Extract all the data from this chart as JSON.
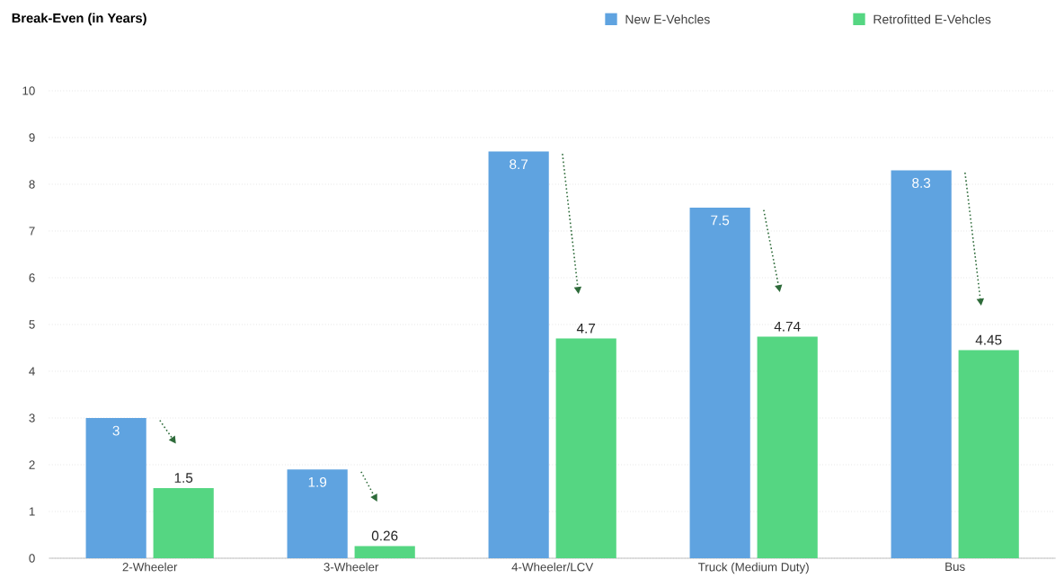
{
  "chart_data": {
    "type": "bar",
    "title": "Break-Even (in Years)",
    "categories": [
      "2-Wheeler",
      "3-Wheeler",
      "4-Wheeler/LCV",
      "Truck (Medium Duty)",
      "Bus"
    ],
    "series": [
      {
        "name": "New E-Vehcles",
        "color": "#5fa3e0",
        "values": [
          3,
          1.9,
          8.7,
          7.5,
          8.3
        ]
      },
      {
        "name": "Retrofitted E-Vehcles",
        "color": "#55d682",
        "values": [
          1.5,
          0.26,
          4.7,
          4.74,
          4.45
        ]
      }
    ],
    "ylim": [
      0,
      10
    ],
    "yticks": [
      0,
      1,
      2,
      3,
      4,
      5,
      6,
      7,
      8,
      9,
      10
    ],
    "grid": "y",
    "legend": "top right",
    "data_labels": true
  }
}
